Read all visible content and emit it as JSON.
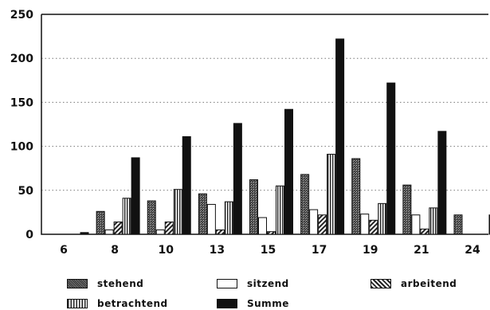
{
  "chart_data": {
    "type": "bar",
    "categories": [
      "6",
      "8",
      "10",
      "13",
      "15",
      "17",
      "19",
      "21",
      "24"
    ],
    "series": [
      {
        "name": "stehend",
        "pattern": "stipple",
        "values": [
          0,
          26,
          38,
          46,
          62,
          68,
          86,
          56,
          22
        ]
      },
      {
        "name": "sitzend",
        "pattern": "white",
        "values": [
          0,
          5,
          5,
          34,
          19,
          28,
          23,
          22,
          0
        ]
      },
      {
        "name": "arbeitend",
        "pattern": "diagonal",
        "values": [
          0,
          14,
          14,
          5,
          3,
          22,
          16,
          6,
          0
        ]
      },
      {
        "name": "betrachtend",
        "pattern": "vertical",
        "values": [
          0,
          41,
          51,
          37,
          55,
          91,
          35,
          30,
          0
        ]
      },
      {
        "name": "Summe",
        "pattern": "black",
        "values": [
          2,
          87,
          111,
          126,
          142,
          222,
          172,
          117,
          22
        ]
      }
    ],
    "yticks": [
      "0",
      "50",
      "100",
      "150",
      "200",
      "250"
    ],
    "ylim": [
      0,
      250
    ],
    "grid": "horizontal dotted",
    "legend_placement": "bottom"
  }
}
